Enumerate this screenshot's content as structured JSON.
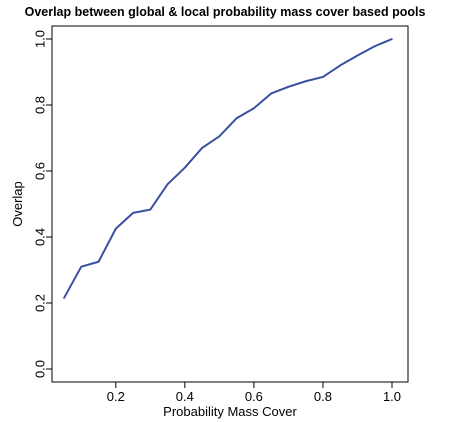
{
  "chart_data": {
    "type": "line",
    "title": "Overlap between global & local probability mass cover based pools",
    "xlabel": "Probability Mass Cover",
    "ylabel": "Overlap",
    "xlim": [
      0.05,
      1.0
    ],
    "ylim": [
      0.0,
      1.0
    ],
    "x_ticks": [
      "0.2",
      "0.4",
      "0.6",
      "0.8",
      "1.0"
    ],
    "y_ticks": [
      "0.0",
      "0.2",
      "0.4",
      "0.6",
      "0.8",
      "1.0"
    ],
    "grid": false,
    "series": [
      {
        "color": "#3b4fa0",
        "x": [
          0.05,
          0.1,
          0.15,
          0.2,
          0.25,
          0.3,
          0.35,
          0.4,
          0.45,
          0.5,
          0.55,
          0.6,
          0.65,
          0.7,
          0.75,
          0.8,
          0.85,
          0.9,
          0.95,
          1.0
        ],
        "y": [
          0.215,
          0.31,
          0.325,
          0.425,
          0.473,
          0.483,
          0.56,
          0.61,
          0.67,
          0.705,
          0.76,
          0.79,
          0.835,
          0.855,
          0.872,
          0.885,
          0.92,
          0.95,
          0.978,
          1.0
        ]
      }
    ]
  }
}
